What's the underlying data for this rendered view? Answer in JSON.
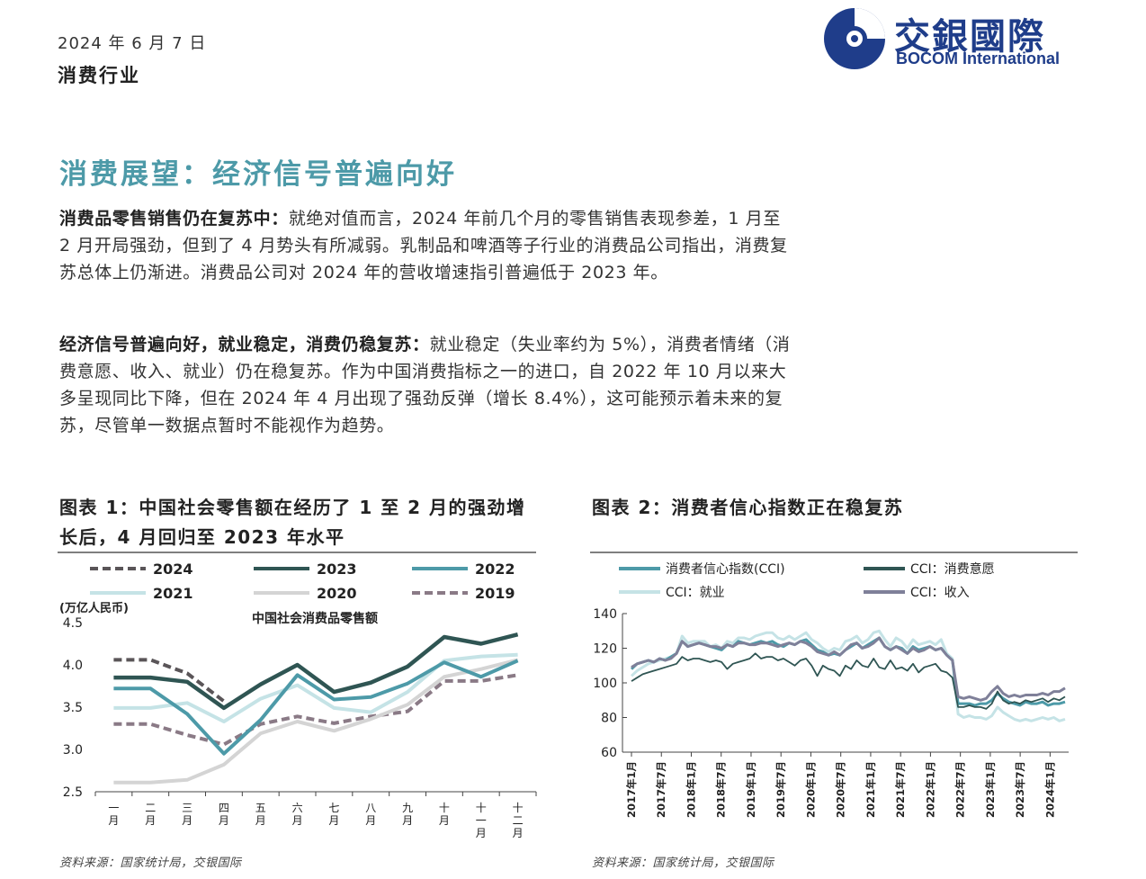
{
  "header": {
    "date": "2024 年 6 月 7 日",
    "industry": "消费行业",
    "logo_cn": "交銀國際",
    "logo_en": "BOCOM International"
  },
  "report": {
    "title": "消费展望：经济信号普遍向好",
    "p1_bold": "消费品零售销售仍在复苏中：",
    "p1_text": "就绝对值而言，2024 年前几个月的零售销售表现参差，1 月至 2 月开局强劲，但到了 4 月势头有所减弱。乳制品和啤酒等子行业的消费品公司指出，消费复苏总体上仍渐进。消费品公司对 2024 年的营收增速指引普遍低于 2023 年。",
    "p2_bold": "经济信号普遍向好，就业稳定，消费仍稳复苏：",
    "p2_text": "就业稳定（失业率约为 5%），消费者情绪（消费意愿、收入、就业）仍在稳复苏。作为中国消费指标之一的进口，自 2022 年 10 月以来大多呈现同比下降，但在 2024 年 4 月出现了强劲反弹（增长 8.4%），这可能预示着未来的复苏，尽管单一数据点暂时不能视作为趋势。"
  },
  "figure1": {
    "title": "图表 1：中国社会零售额在经历了 1 至 2 月的强劲增长后，4 月回归至 2023 年水平",
    "source": "资料来源：国家统计局，交银国际"
  },
  "figure2": {
    "title": "图表 2：消费者信心指数正在稳复苏",
    "source": "资料来源：国家统计局，交银国际"
  },
  "chart_data": [
    {
      "type": "line",
      "title": "中国社会消费品零售额",
      "ylabel": "(万亿人民币)",
      "ylim": [
        2.5,
        4.5
      ],
      "yticks": [
        "2.5",
        "3.0",
        "3.5",
        "4.0",
        "4.5"
      ],
      "categories": [
        "一月",
        "二月",
        "三月",
        "四月",
        "五月",
        "六月",
        "七月",
        "八月",
        "九月",
        "十月",
        "十一月",
        "十二月"
      ],
      "legend_position": "top",
      "series": [
        {
          "name": "2024",
          "color": "#5a5558",
          "style": "dashed",
          "values": [
            4.06,
            4.06,
            3.9,
            3.57,
            null,
            null,
            null,
            null,
            null,
            null,
            null,
            null
          ]
        },
        {
          "name": "2023",
          "color": "#2f5553",
          "style": "solid",
          "values": [
            3.85,
            3.85,
            3.8,
            3.49,
            3.77,
            4.0,
            3.68,
            3.79,
            3.98,
            4.33,
            4.25,
            4.36
          ]
        },
        {
          "name": "2022",
          "color": "#4d9aa8",
          "style": "solid",
          "values": [
            3.72,
            3.72,
            3.42,
            2.95,
            3.35,
            3.88,
            3.59,
            3.62,
            3.78,
            4.03,
            3.86,
            4.05
          ]
        },
        {
          "name": "2021",
          "color": "#c5e3e6",
          "style": "solid",
          "values": [
            3.49,
            3.49,
            3.55,
            3.33,
            3.6,
            3.76,
            3.49,
            3.44,
            3.68,
            4.05,
            4.1,
            4.12
          ]
        },
        {
          "name": "2020",
          "color": "#d4d4d4",
          "style": "solid",
          "values": [
            2.61,
            2.61,
            2.64,
            2.82,
            3.19,
            3.33,
            3.22,
            3.36,
            3.53,
            3.86,
            3.95,
            4.06
          ]
        },
        {
          "name": "2019",
          "color": "#8a7a86",
          "style": "dashed",
          "values": [
            3.3,
            3.3,
            3.17,
            3.06,
            3.3,
            3.39,
            3.31,
            3.39,
            3.45,
            3.81,
            3.81,
            3.88
          ]
        }
      ]
    },
    {
      "type": "line",
      "ylim": [
        60,
        140
      ],
      "yticks": [
        "60",
        "80",
        "100",
        "120",
        "140"
      ],
      "x_tick_labels": [
        "2017年1月",
        "2017年7月",
        "2018年1月",
        "2018年7月",
        "2019年1月",
        "2019年7月",
        "2020年1月",
        "2020年7月",
        "2021年1月",
        "2021年7月",
        "2022年1月",
        "2022年7月",
        "2023年1月",
        "2023年7月",
        "2024年1月"
      ],
      "legend_position": "top",
      "series": [
        {
          "name": "消费者信心指数(CCI)",
          "color": "#4d9aa8",
          "values": [
            108,
            111,
            112,
            113,
            112,
            114,
            113,
            115,
            117,
            124,
            121,
            122,
            123,
            122,
            121,
            120,
            119,
            122,
            121,
            124,
            123,
            122,
            123,
            124,
            123,
            124,
            122,
            121,
            123,
            122,
            124,
            125,
            122,
            119,
            118,
            116,
            117,
            116,
            119,
            121,
            123,
            120,
            122,
            124,
            126,
            121,
            119,
            121,
            120,
            117,
            121,
            119,
            120,
            121,
            119,
            120,
            116,
            113,
            88,
            88,
            88,
            87,
            88,
            88,
            90,
            94,
            91,
            89,
            88,
            87,
            89,
            88,
            88,
            89,
            87,
            88,
            88,
            89
          ]
        },
        {
          "name": "CCI：消费意愿",
          "color": "#2f5553",
          "values": [
            101,
            103,
            105,
            106,
            107,
            108,
            109,
            110,
            111,
            115,
            113,
            114,
            114,
            113,
            112,
            113,
            112,
            108,
            111,
            112,
            113,
            114,
            117,
            114,
            115,
            115,
            113,
            114,
            112,
            110,
            113,
            114,
            110,
            104,
            110,
            108,
            107,
            104,
            110,
            108,
            113,
            110,
            109,
            114,
            109,
            108,
            113,
            108,
            109,
            107,
            111,
            106,
            109,
            110,
            111,
            107,
            106,
            103,
            86,
            86,
            87,
            86,
            86,
            85,
            88,
            95,
            90,
            88,
            89,
            88,
            90,
            89,
            90,
            91,
            89,
            91,
            90,
            92
          ]
        },
        {
          "name": "CCI：就业",
          "color": "#c5e3e6",
          "values": [
            104,
            107,
            109,
            111,
            112,
            113,
            114,
            115,
            117,
            127,
            123,
            124,
            124,
            124,
            121,
            122,
            120,
            124,
            123,
            126,
            126,
            125,
            127,
            128,
            129,
            129,
            126,
            125,
            127,
            125,
            127,
            129,
            125,
            123,
            120,
            118,
            120,
            119,
            124,
            125,
            127,
            123,
            125,
            129,
            130,
            125,
            121,
            126,
            124,
            120,
            125,
            122,
            123,
            124,
            122,
            125,
            117,
            114,
            82,
            80,
            81,
            80,
            80,
            79,
            81,
            86,
            83,
            81,
            79,
            78,
            79,
            78,
            79,
            80,
            79,
            80,
            78,
            79
          ]
        },
        {
          "name": "CCI：收入",
          "color": "#7f8099",
          "values": [
            109,
            111,
            112,
            113,
            112,
            114,
            113,
            114,
            117,
            124,
            121,
            122,
            123,
            122,
            121,
            121,
            120,
            122,
            121,
            123,
            123,
            122,
            122,
            123,
            123,
            122,
            121,
            122,
            123,
            122,
            124,
            123,
            121,
            118,
            117,
            116,
            118,
            116,
            119,
            122,
            123,
            120,
            121,
            123,
            126,
            121,
            119,
            121,
            119,
            117,
            120,
            118,
            119,
            121,
            119,
            120,
            116,
            113,
            92,
            91,
            92,
            91,
            90,
            91,
            95,
            98,
            94,
            92,
            93,
            92,
            93,
            93,
            93,
            94,
            93,
            95,
            95,
            97
          ]
        }
      ]
    }
  ]
}
